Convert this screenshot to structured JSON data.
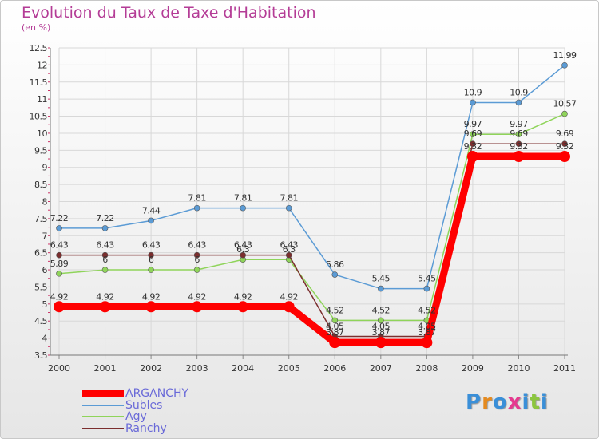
{
  "title": "Evolution du Taux de Taxe d'Habitation",
  "subtitle": "(en %)",
  "chart_data": {
    "type": "line",
    "title": "Evolution du Taux de Taxe d'Habitation",
    "ylabel": "(en %)",
    "xlabel": "",
    "categories": [
      "2000",
      "2001",
      "2002",
      "2003",
      "2004",
      "2005",
      "2006",
      "2007",
      "2008",
      "2009",
      "2010",
      "2011"
    ],
    "ylim": [
      3.5,
      12.5
    ],
    "yticks": [
      "3.5",
      "4",
      "4.5",
      "5",
      "5.5",
      "6",
      "6.5",
      "7",
      "7.5",
      "8",
      "8.5",
      "9",
      "9.5",
      "10",
      "10.5",
      "11",
      "11.5",
      "12",
      "12.5"
    ],
    "series": [
      {
        "name": "ARGANCHY",
        "color": "#ff0000",
        "values": [
          4.92,
          4.92,
          4.92,
          4.92,
          4.92,
          4.92,
          3.87,
          3.87,
          3.87,
          9.32,
          9.32,
          9.32
        ],
        "labels": [
          "4.92",
          "4.92",
          "4.92",
          "4.92",
          "4.92",
          "4.92",
          "3.87",
          "3.87",
          "3.87",
          "9.32",
          "9.32",
          "9.32"
        ]
      },
      {
        "name": "Subles",
        "color": "#5b9bd5",
        "values": [
          7.22,
          7.22,
          7.44,
          7.81,
          7.81,
          7.81,
          5.86,
          5.45,
          5.45,
          10.9,
          10.9,
          11.99
        ],
        "labels": [
          "7.22",
          "7.22",
          "7.44",
          "7.81",
          "7.81",
          "7.81",
          "5.86",
          "5.45",
          "5.45",
          "10.9",
          "10.9",
          "11.99"
        ]
      },
      {
        "name": "Agy",
        "color": "#8fd45a",
        "values": [
          5.89,
          6,
          6,
          6,
          6.3,
          6.3,
          4.52,
          4.52,
          4.52,
          9.97,
          9.97,
          10.57
        ],
        "labels": [
          "5.89",
          "6",
          "6",
          "6",
          "6.3",
          "6.3",
          "4.52",
          "4.52",
          "4.52",
          "9.97",
          "9.97",
          "10.57"
        ]
      },
      {
        "name": "Ranchy",
        "color": "#7b2e2e",
        "values": [
          6.43,
          6.43,
          6.43,
          6.43,
          6.43,
          6.43,
          4.05,
          4.05,
          4.05,
          9.69,
          9.69,
          9.69
        ],
        "labels": [
          "6.43",
          "6.43",
          "6.43",
          "6.43",
          "6.43",
          "6.43",
          "4.05",
          "4.05",
          "4.05",
          "9.69",
          "9.69",
          "9.69"
        ]
      }
    ]
  },
  "logo": {
    "text": [
      "P",
      "r",
      "o",
      "x",
      "i",
      "t",
      "i"
    ],
    "colors": [
      "#3a8fd8",
      "#e58a1f",
      "#3a8fd8",
      "#e53a8f",
      "#3a8fd8",
      "#8cc63f",
      "#3a8fd8"
    ]
  }
}
